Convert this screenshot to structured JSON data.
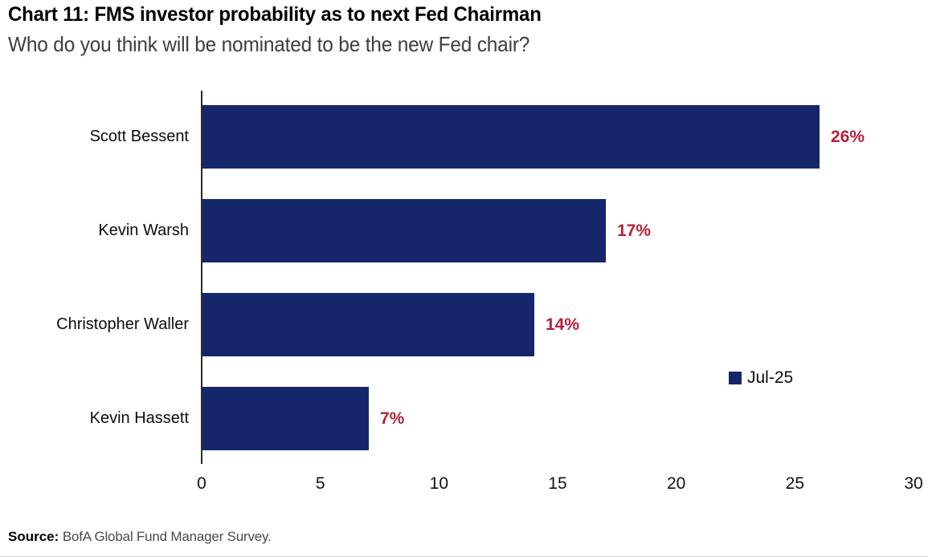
{
  "header": {
    "title": "Chart 11: FMS investor probability as to next Fed Chairman",
    "subtitle": "Who do you think will be nominated to be the new Fed chair?"
  },
  "chart_data": {
    "type": "bar",
    "orientation": "horizontal",
    "title": "Chart 11: FMS investor probability as to next Fed Chairman",
    "subtitle": "Who do you think will be nominated to be the new Fed chair?",
    "categories": [
      "Scott Bessent",
      "Kevin Warsh",
      "Christopher Waller",
      "Kevin Hassett"
    ],
    "values": [
      26,
      17,
      14,
      7
    ],
    "value_labels": [
      "26%",
      "17%",
      "14%",
      "7%"
    ],
    "series_name": "Jul-25",
    "xlim": [
      0,
      30
    ],
    "xticks": [
      0,
      5,
      10,
      15,
      20,
      25,
      30
    ],
    "grid": false,
    "legend_position": "right-middle",
    "bar_color": "#15266B",
    "value_label_color": "#B61F38"
  },
  "legend": {
    "label": "Jul-25"
  },
  "footer": {
    "source_label": "Source:",
    "source_text": " BofA Global Fund Manager Survey."
  }
}
